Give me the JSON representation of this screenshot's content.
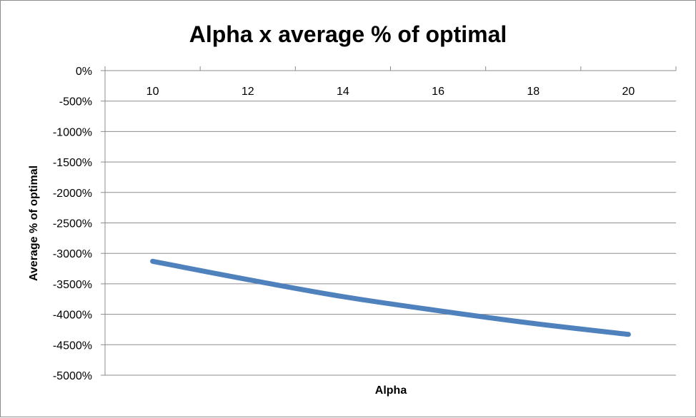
{
  "chart_data": {
    "type": "line",
    "title": "Alpha x average % of optimal",
    "xlabel": "Alpha",
    "ylabel": "Average % of optimal",
    "categories": [
      "10",
      "12",
      "14",
      "16",
      "18",
      "20"
    ],
    "y_tick_labels": [
      "0%",
      "-500%",
      "-1000%",
      "-1500%",
      "-2000%",
      "-2500%",
      "-3000%",
      "-3500%",
      "-4000%",
      "-4500%",
      "-5000%"
    ],
    "ylim": [
      -5000,
      0
    ],
    "y_step": 500,
    "x_axis_position": "top",
    "grid": true,
    "legend": "none",
    "series": [
      {
        "values": [
          -3130,
          -3430,
          -3710,
          -3940,
          -4150,
          -4330
        ],
        "color": "#4f81bd"
      }
    ]
  }
}
